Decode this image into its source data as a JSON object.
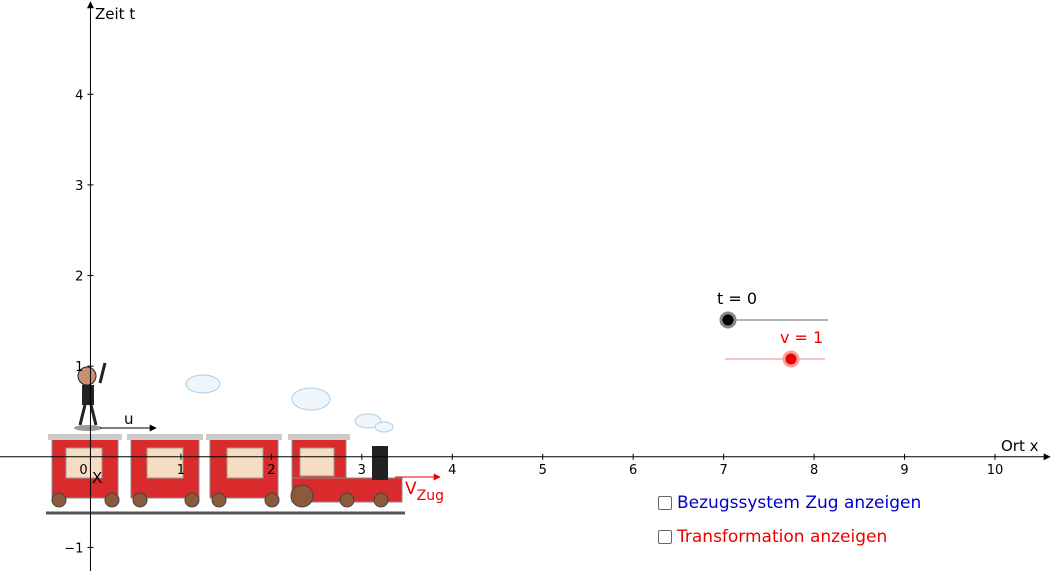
{
  "axes": {
    "x_label": "Ort x",
    "y_label": "Zeit t",
    "xlim": [
      -1,
      10.63
    ],
    "ylim": [
      -1.26,
      5.04
    ],
    "xticks": [
      0,
      1,
      2,
      3,
      4,
      5,
      6,
      7,
      8,
      9,
      10
    ],
    "yticks": [
      {
        "value": -1,
        "label": "−1"
      },
      1,
      2,
      3,
      4
    ]
  },
  "annotations": {
    "u": "u",
    "x": "X",
    "v_zug": "V",
    "v_zug_sub": "Zug"
  },
  "sliders": [
    {
      "label": "t = 0"
    },
    {
      "label": "v = 1"
    }
  ],
  "checkboxes": [
    {
      "label": "Bezugssystem Zug anzeigen"
    },
    {
      "label": "Transformation anzeigen"
    }
  ]
}
